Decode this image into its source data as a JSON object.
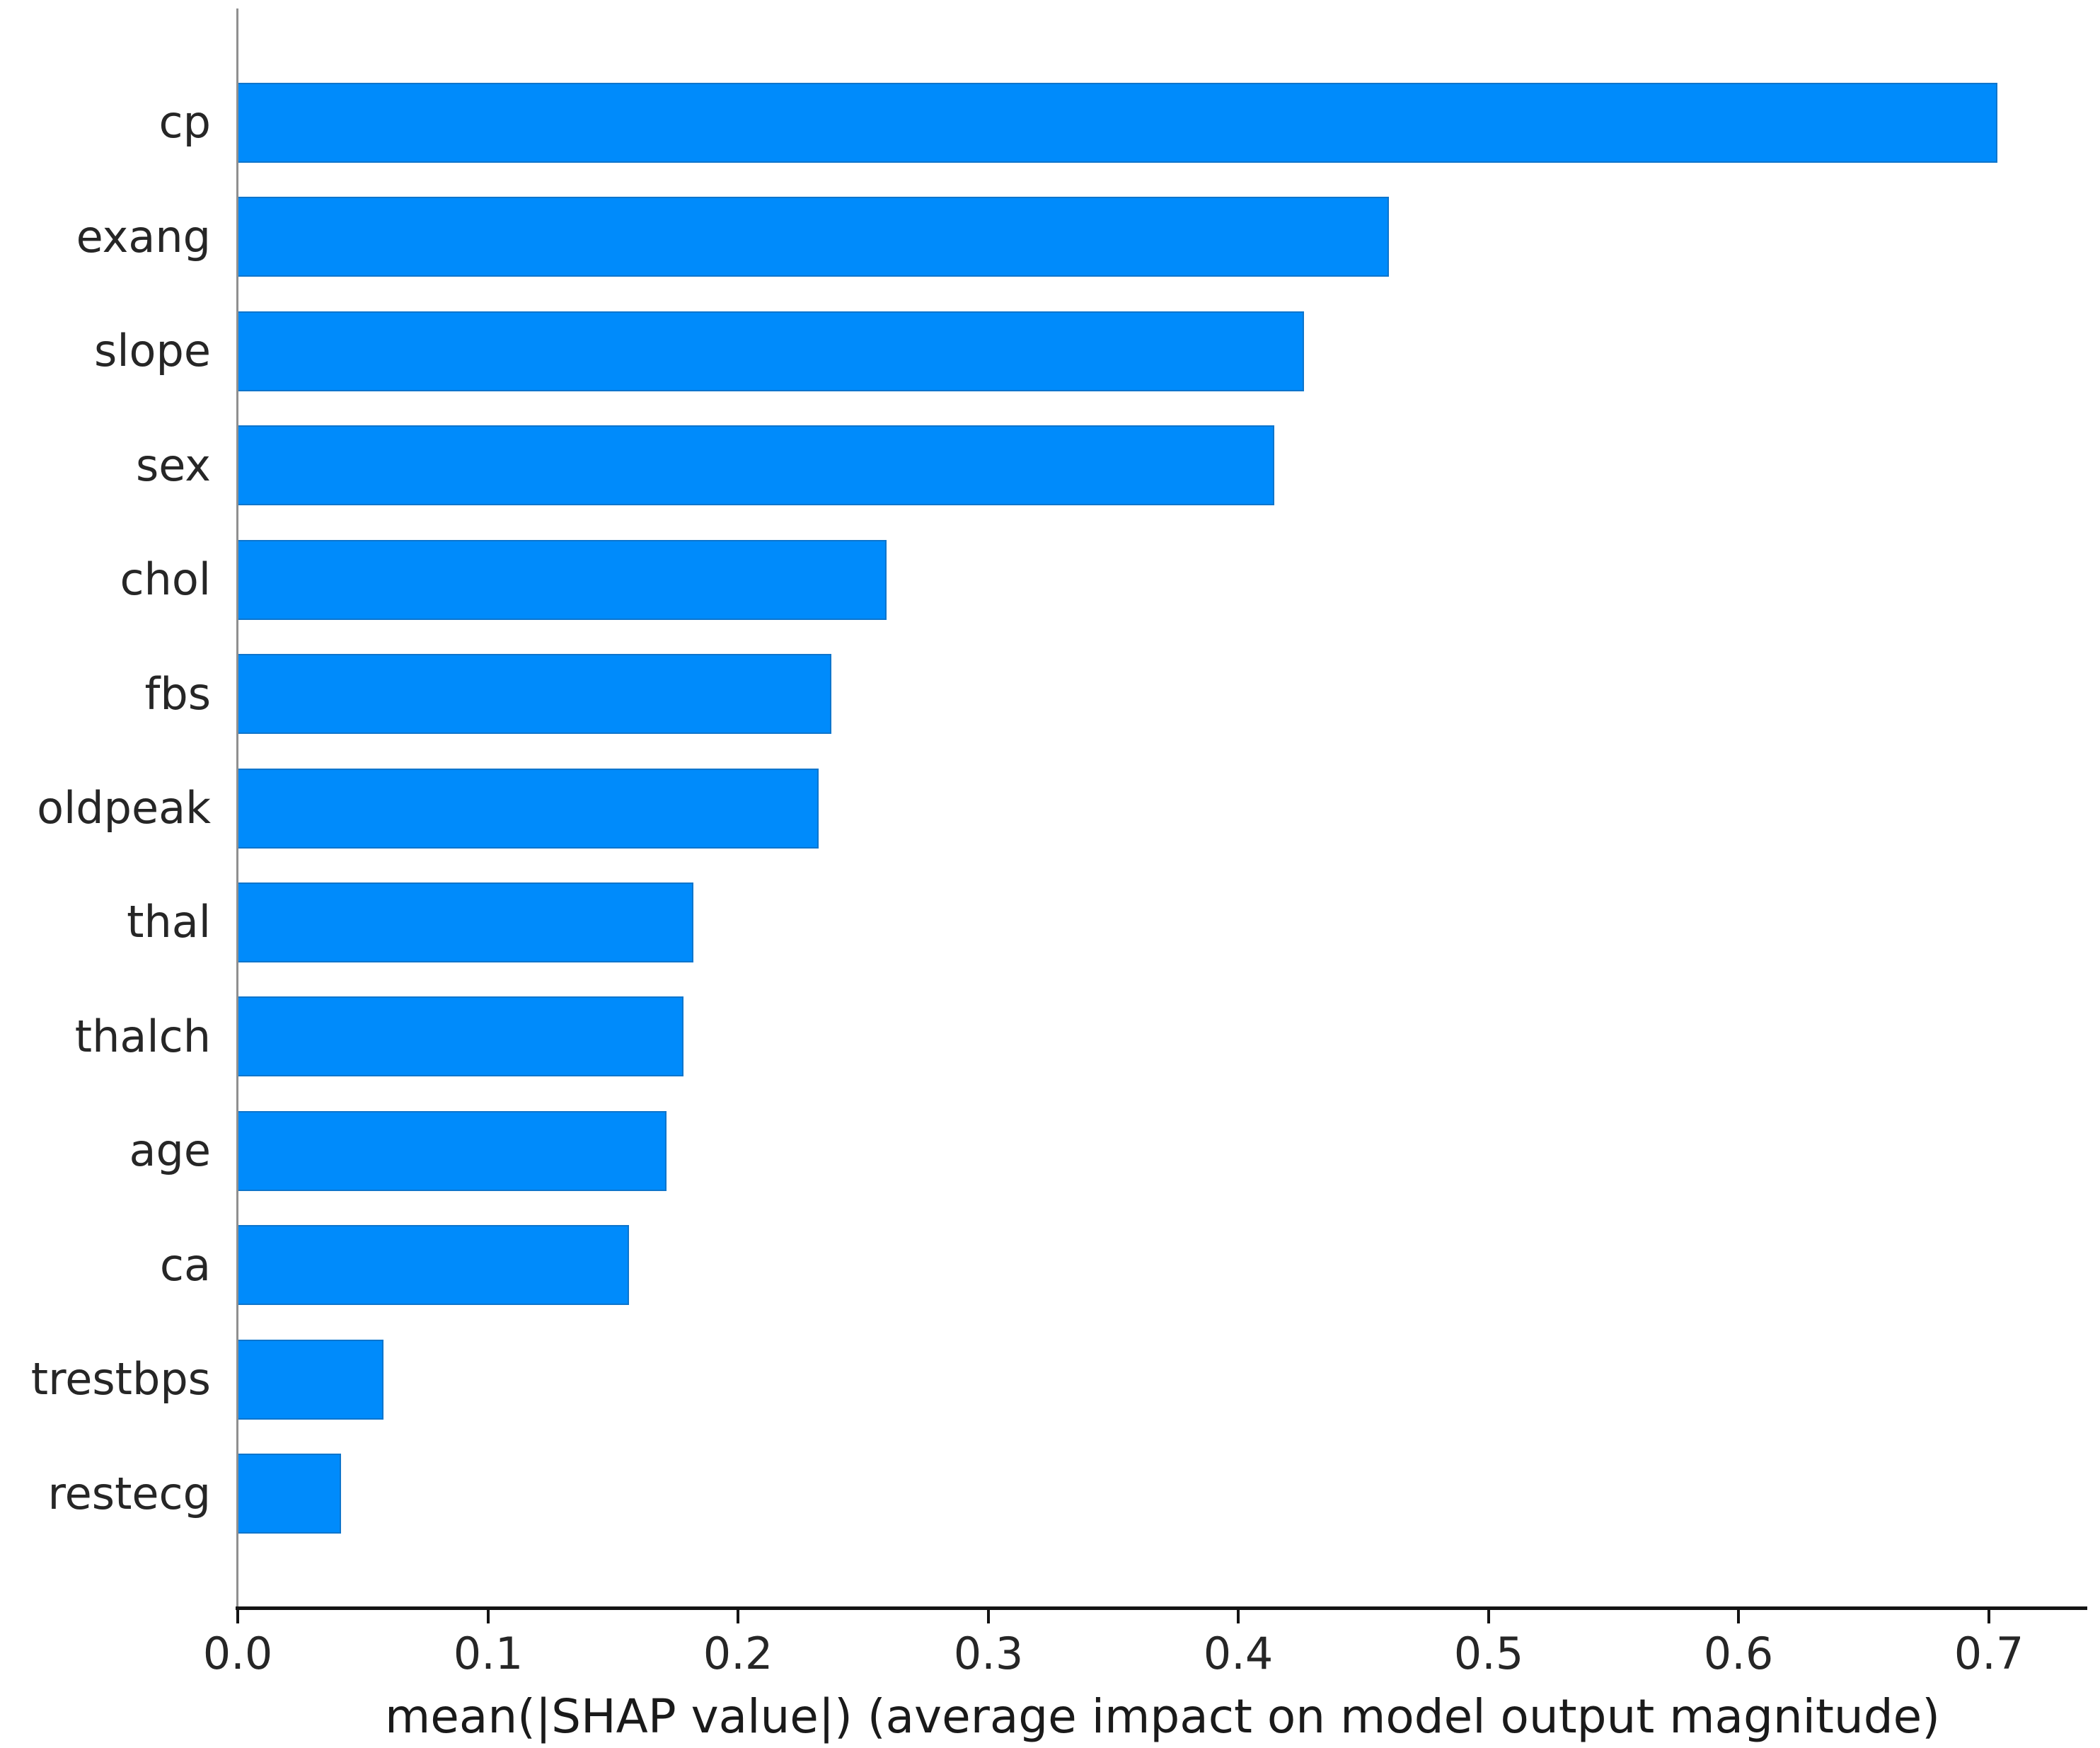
{
  "chart_data": {
    "type": "bar",
    "orientation": "horizontal",
    "title": "",
    "xlabel": "mean(|SHAP value|) (average impact on model output magnitude)",
    "ylabel": "",
    "categories": [
      "cp",
      "exang",
      "slope",
      "sex",
      "chol",
      "fbs",
      "oldpeak",
      "thal",
      "thalch",
      "age",
      "ca",
      "trestbps",
      "restecg"
    ],
    "values": [
      0.703,
      0.46,
      0.426,
      0.414,
      0.259,
      0.237,
      0.232,
      0.182,
      0.178,
      0.171,
      0.156,
      0.058,
      0.041
    ],
    "xlim": [
      0.0,
      0.739
    ],
    "x_tick_labels": [
      "0.0",
      "0.1",
      "0.2",
      "0.3",
      "0.4",
      "0.5",
      "0.6",
      "0.7"
    ],
    "x_ticks": [
      0.0,
      0.1,
      0.2,
      0.3,
      0.4,
      0.5,
      0.6,
      0.7
    ],
    "grid": false,
    "legend": null,
    "bar_color": "#008bfb",
    "bar_edge_color": "#1668b0",
    "axis_color": "#141414",
    "left_spine_color": "#8f8f8f",
    "text_color": "#262626"
  }
}
